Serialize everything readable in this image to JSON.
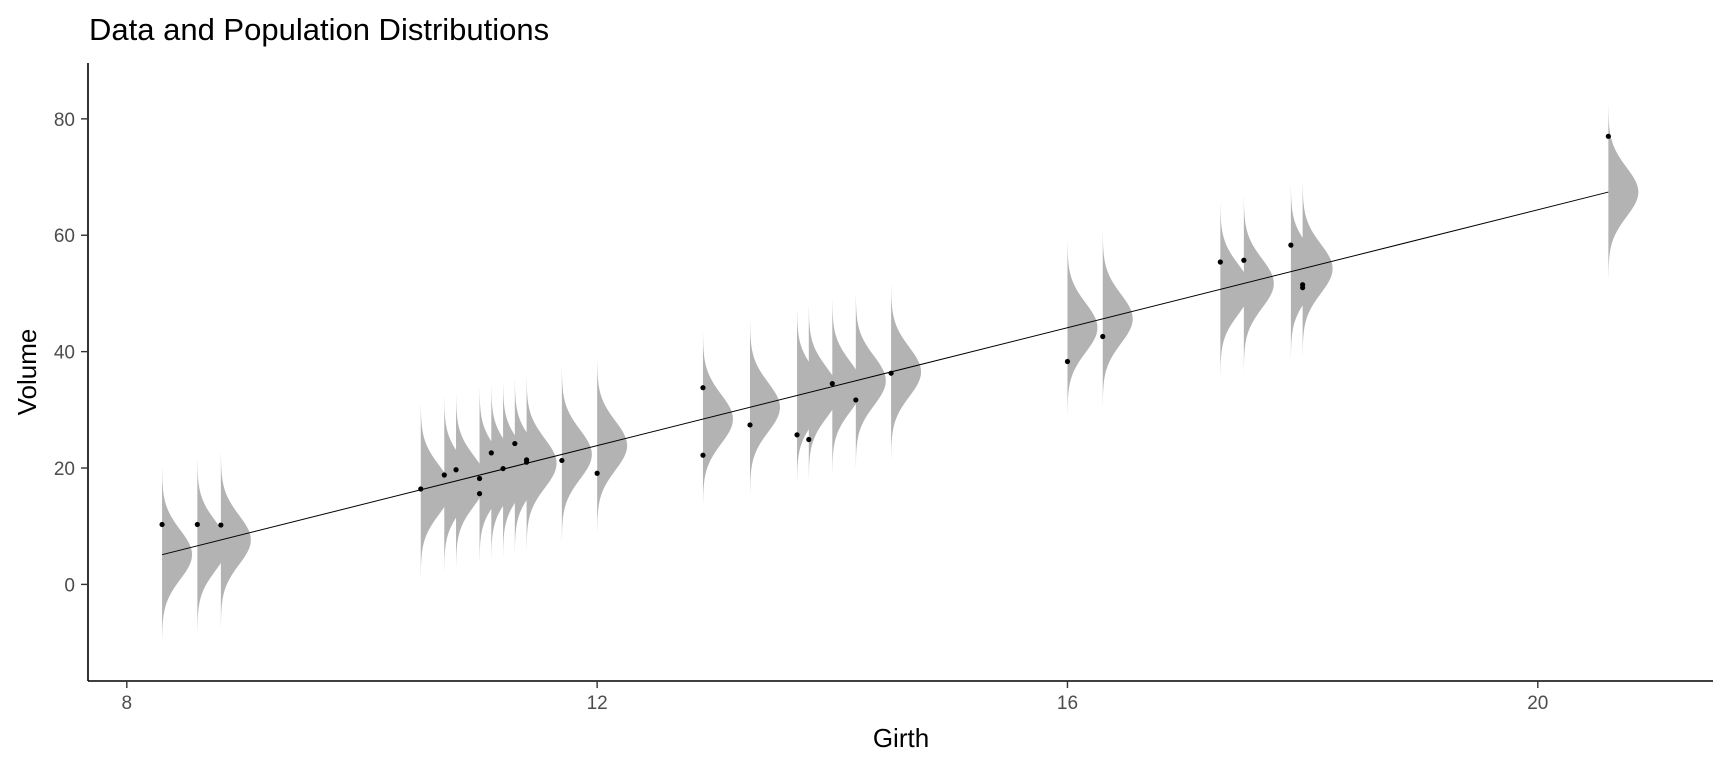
{
  "chart_data": {
    "type": "scatter",
    "title": "Data and Population Distributions",
    "xlabel": "Girth",
    "ylabel": "Volume",
    "xlim": [
      7.67,
      21.49
    ],
    "ylim": [
      -16.6,
      89.6
    ],
    "xticks": [
      8,
      12,
      16,
      20
    ],
    "yticks": [
      0,
      20,
      40,
      60,
      80
    ],
    "grid": false,
    "legend": "none",
    "colors": {
      "points": "#000000",
      "density_fill": "#b3b3b3",
      "regression_line": "#000000",
      "axis": "#000000",
      "tick_label": "#4d4d4d"
    },
    "regression": {
      "intercept": -36.94,
      "slope": 5.066
    },
    "residual_sd": 4.25,
    "density_span_sd": 3.5,
    "points": [
      {
        "x": 8.3,
        "y": 10.3
      },
      {
        "x": 8.6,
        "y": 10.3
      },
      {
        "x": 8.8,
        "y": 10.2
      },
      {
        "x": 10.5,
        "y": 16.4
      },
      {
        "x": 10.7,
        "y": 18.8
      },
      {
        "x": 10.8,
        "y": 19.7
      },
      {
        "x": 11.0,
        "y": 15.6
      },
      {
        "x": 11.0,
        "y": 18.2
      },
      {
        "x": 11.1,
        "y": 22.6
      },
      {
        "x": 11.2,
        "y": 19.9
      },
      {
        "x": 11.3,
        "y": 24.2
      },
      {
        "x": 11.4,
        "y": 21.0
      },
      {
        "x": 11.4,
        "y": 21.4
      },
      {
        "x": 11.7,
        "y": 21.3
      },
      {
        "x": 12.0,
        "y": 19.1
      },
      {
        "x": 12.9,
        "y": 22.2
      },
      {
        "x": 12.9,
        "y": 33.8
      },
      {
        "x": 13.3,
        "y": 27.4
      },
      {
        "x": 13.7,
        "y": 25.7
      },
      {
        "x": 13.8,
        "y": 24.9
      },
      {
        "x": 14.0,
        "y": 34.5
      },
      {
        "x": 14.2,
        "y": 31.7
      },
      {
        "x": 14.5,
        "y": 36.3
      },
      {
        "x": 16.0,
        "y": 38.3
      },
      {
        "x": 16.3,
        "y": 42.6
      },
      {
        "x": 17.3,
        "y": 55.4
      },
      {
        "x": 17.5,
        "y": 55.7
      },
      {
        "x": 17.9,
        "y": 58.3
      },
      {
        "x": 18.0,
        "y": 51.5
      },
      {
        "x": 18.0,
        "y": 51.0
      },
      {
        "x": 20.6,
        "y": 77.0
      }
    ]
  }
}
